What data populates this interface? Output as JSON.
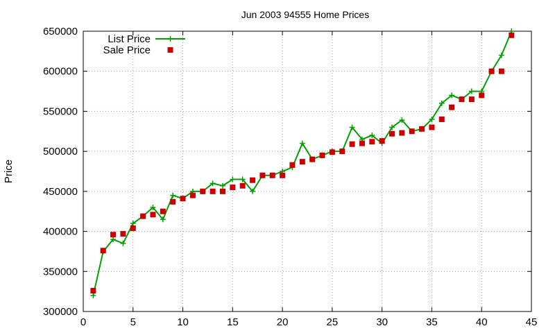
{
  "chart_data": {
    "type": "line",
    "title": "Jun 2003 94555 Home Prices",
    "xlabel": "",
    "ylabel": "Price",
    "xlim": [
      0,
      45
    ],
    "ylim": [
      300000,
      650000
    ],
    "x_ticks": [
      0,
      5,
      10,
      15,
      20,
      25,
      30,
      35,
      40,
      45
    ],
    "y_ticks": [
      300000,
      350000,
      400000,
      450000,
      500000,
      550000,
      600000,
      650000
    ],
    "grid": true,
    "legend_position": "top-left",
    "series": [
      {
        "name": "List Price",
        "style": "line-with-plus-markers",
        "color": "#00a000",
        "points": [
          [
            1,
            320000
          ],
          [
            2,
            375000
          ],
          [
            3,
            390000
          ],
          [
            4,
            385000
          ],
          [
            5,
            410000
          ],
          [
            6,
            419000
          ],
          [
            7,
            430000
          ],
          [
            8,
            415000
          ],
          [
            9,
            445000
          ],
          [
            10,
            441000
          ],
          [
            11,
            450000
          ],
          [
            12,
            450000
          ],
          [
            13,
            460000
          ],
          [
            14,
            457000
          ],
          [
            15,
            465000
          ],
          [
            16,
            465000
          ],
          [
            17,
            450000
          ],
          [
            18,
            470000
          ],
          [
            19,
            470000
          ],
          [
            20,
            475000
          ],
          [
            21,
            480000
          ],
          [
            22,
            510000
          ],
          [
            23,
            490000
          ],
          [
            24,
            495000
          ],
          [
            25,
            500000
          ],
          [
            26,
            500000
          ],
          [
            27,
            530000
          ],
          [
            28,
            515000
          ],
          [
            29,
            520000
          ],
          [
            30,
            510000
          ],
          [
            31,
            530000
          ],
          [
            32,
            539000
          ],
          [
            33,
            525000
          ],
          [
            34,
            528000
          ],
          [
            35,
            540000
          ],
          [
            36,
            560000
          ],
          [
            37,
            570000
          ],
          [
            38,
            565000
          ],
          [
            39,
            575000
          ],
          [
            40,
            575000
          ],
          [
            41,
            600000
          ],
          [
            42,
            620000
          ],
          [
            43,
            650000
          ]
        ]
      },
      {
        "name": "Sale Price",
        "style": "square-markers",
        "color": "#cc0000",
        "points": [
          [
            1,
            326000
          ],
          [
            2,
            376000
          ],
          [
            3,
            396000
          ],
          [
            4,
            397000
          ],
          [
            5,
            404000
          ],
          [
            6,
            419000
          ],
          [
            7,
            421000
          ],
          [
            8,
            425000
          ],
          [
            9,
            437000
          ],
          [
            10,
            441000
          ],
          [
            11,
            445000
          ],
          [
            12,
            450000
          ],
          [
            13,
            450000
          ],
          [
            14,
            450000
          ],
          [
            15,
            455000
          ],
          [
            16,
            457000
          ],
          [
            17,
            464000
          ],
          [
            18,
            470000
          ],
          [
            19,
            470000
          ],
          [
            20,
            470000
          ],
          [
            21,
            483000
          ],
          [
            22,
            487000
          ],
          [
            23,
            490000
          ],
          [
            24,
            495000
          ],
          [
            25,
            499000
          ],
          [
            26,
            500000
          ],
          [
            27,
            509000
          ],
          [
            28,
            510000
          ],
          [
            29,
            512000
          ],
          [
            30,
            513000
          ],
          [
            31,
            522000
          ],
          [
            32,
            523000
          ],
          [
            33,
            525000
          ],
          [
            34,
            528000
          ],
          [
            35,
            530000
          ],
          [
            36,
            540000
          ],
          [
            37,
            555000
          ],
          [
            38,
            565000
          ],
          [
            39,
            565000
          ],
          [
            40,
            570000
          ],
          [
            41,
            600000
          ],
          [
            42,
            600000
          ],
          [
            43,
            645000
          ]
        ]
      }
    ]
  }
}
